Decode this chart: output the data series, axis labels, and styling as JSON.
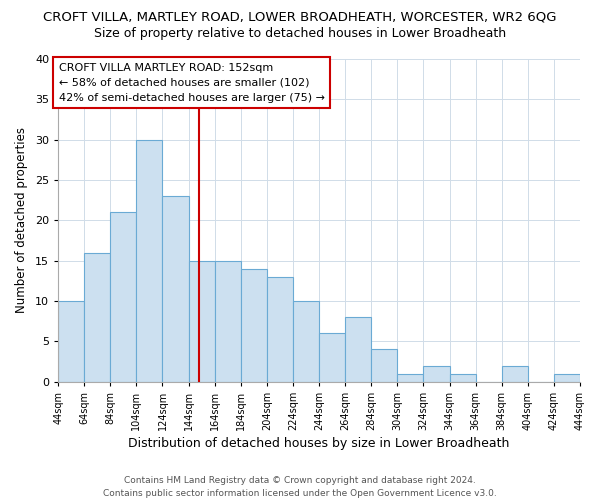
{
  "title": "CROFT VILLA, MARTLEY ROAD, LOWER BROADHEATH, WORCESTER, WR2 6QG",
  "subtitle": "Size of property relative to detached houses in Lower Broadheath",
  "xlabel": "Distribution of detached houses by size in Lower Broadheath",
  "ylabel": "Number of detached properties",
  "bin_edges": [
    44,
    64,
    84,
    104,
    124,
    144,
    164,
    184,
    204,
    224,
    244,
    264,
    284,
    304,
    324,
    344,
    364,
    384,
    404,
    424,
    444
  ],
  "bar_heights": [
    10,
    16,
    21,
    30,
    23,
    15,
    15,
    14,
    13,
    10,
    6,
    8,
    4,
    1,
    2,
    1,
    0,
    2,
    0,
    1
  ],
  "bar_color": "#cce0f0",
  "bar_edge_color": "#6aaad4",
  "vline_x": 152,
  "vline_color": "#cc0000",
  "ylim": [
    0,
    40
  ],
  "annotation_title": "CROFT VILLA MARTLEY ROAD: 152sqm",
  "annotation_line1": "← 58% of detached houses are smaller (102)",
  "annotation_line2": "42% of semi-detached houses are larger (75) →",
  "footer1": "Contains HM Land Registry data © Crown copyright and database right 2024.",
  "footer2": "Contains public sector information licensed under the Open Government Licence v3.0.",
  "tick_labels": [
    "44sqm",
    "64sqm",
    "84sqm",
    "104sqm",
    "124sqm",
    "144sqm",
    "164sqm",
    "184sqm",
    "204sqm",
    "224sqm",
    "244sqm",
    "264sqm",
    "284sqm",
    "304sqm",
    "324sqm",
    "344sqm",
    "364sqm",
    "384sqm",
    "404sqm",
    "424sqm",
    "444sqm"
  ],
  "title_fontsize": 9.5,
  "subtitle_fontsize": 9,
  "xlabel_fontsize": 9,
  "ylabel_fontsize": 8.5,
  "tick_fontsize": 7,
  "annotation_fontsize": 8,
  "footer_fontsize": 6.5,
  "yticks": [
    0,
    5,
    10,
    15,
    20,
    25,
    30,
    35,
    40
  ]
}
